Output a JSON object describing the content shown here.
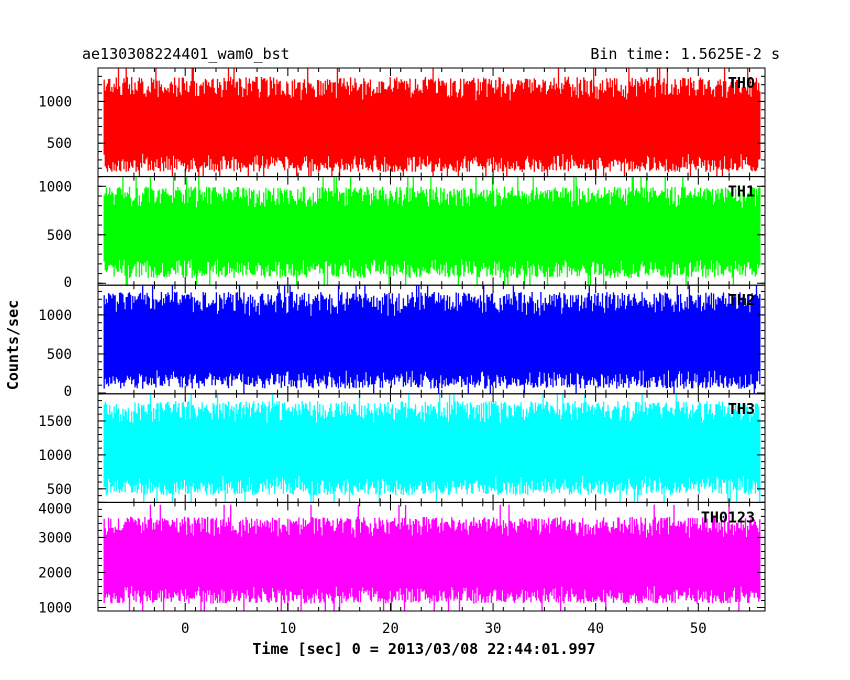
{
  "chart_data": {
    "type": "line",
    "title": "ae130308224401_wam0_bst",
    "subtitle": "Bin time: 1.5625E-2 s",
    "xlabel": "Time [sec] 0 = 2013/03/08 22:44:01.997",
    "ylabel": "Counts/sec",
    "xlim": [
      -8.5,
      56.5
    ],
    "x_data_range": [
      -7.9,
      56.0
    ],
    "x_ticks": [
      0,
      10,
      20,
      30,
      40,
      50
    ],
    "x_tick_labels": [
      "0",
      "10",
      "20",
      "30",
      "40",
      "50"
    ],
    "grid": false,
    "panels": [
      {
        "name": "TH0",
        "color": "#ff0000",
        "ylim": [
          100,
          1400
        ],
        "y_ticks": [
          500,
          1000
        ],
        "y_tick_labels": [
          "500",
          "1000"
        ],
        "mean": 650,
        "min_typical": 150,
        "max_typical": 1300
      },
      {
        "name": "TH1",
        "color": "#00ff00",
        "ylim": [
          -20,
          1100
        ],
        "y_ticks": [
          0,
          500,
          1000
        ],
        "y_tick_labels": [
          "0",
          "500",
          "1000"
        ],
        "mean": 500,
        "min_typical": 50,
        "max_typical": 1000
      },
      {
        "name": "TH2",
        "color": "#0000ff",
        "ylim": [
          -10,
          1380
        ],
        "y_ticks": [
          0,
          500,
          1000
        ],
        "y_tick_labels": [
          "0",
          "500",
          "1000"
        ],
        "mean": 600,
        "min_typical": 50,
        "max_typical": 1300
      },
      {
        "name": "TH3",
        "color": "#00ffff",
        "ylim": [
          300,
          1900
        ],
        "y_ticks": [
          500,
          1000,
          1500
        ],
        "y_tick_labels": [
          "500",
          "1000",
          "1500"
        ],
        "mean": 1050,
        "min_typical": 400,
        "max_typical": 1800
      },
      {
        "name": "TH0123",
        "color": "#ff00ff",
        "ylim": [
          900,
          4000
        ],
        "y_ticks": [
          1000,
          2000,
          3000,
          4000
        ],
        "y_tick_labels": [
          "1000",
          "2000",
          "3000",
          "4000"
        ],
        "mean": 2250,
        "min_typical": 1100,
        "max_typical": 3600
      }
    ]
  }
}
